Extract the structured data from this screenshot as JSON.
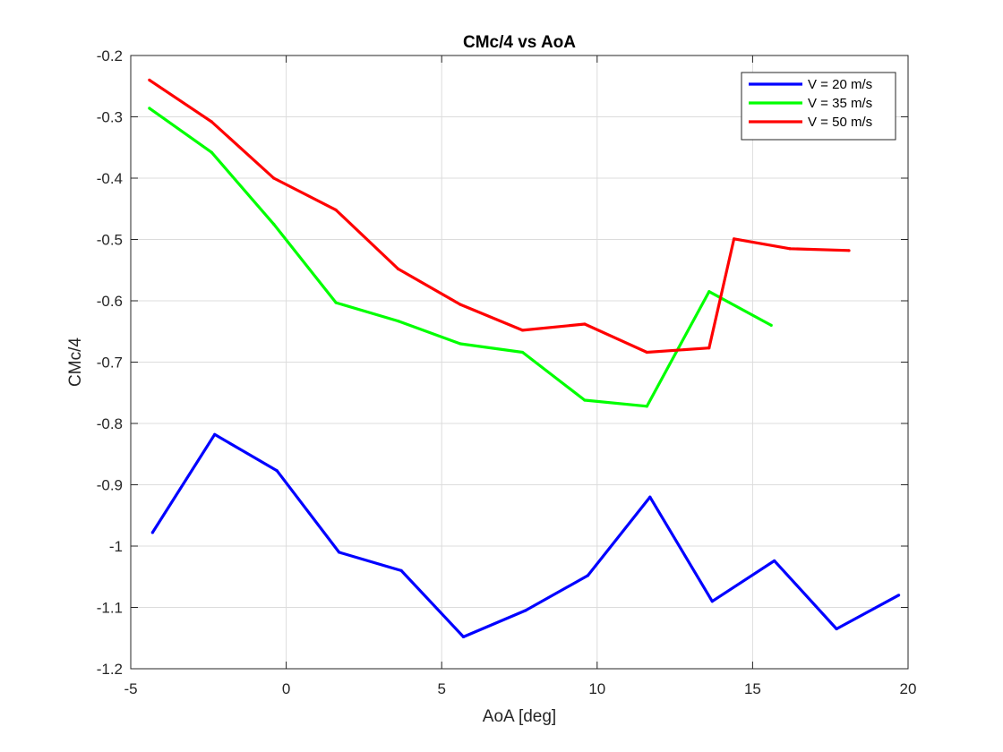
{
  "chart_data": {
    "type": "line",
    "title": "CMc/4 vs AoA",
    "xlabel": "AoA [deg]",
    "ylabel": "CMc/4",
    "xlim": [
      -5,
      20
    ],
    "ylim": [
      -1.2,
      -0.2
    ],
    "xticks": [
      "-5",
      "0",
      "5",
      "10",
      "15",
      "20"
    ],
    "yticks": [
      "-1.2",
      "-1.1",
      "-1",
      "-0.9",
      "-0.8",
      "-0.7",
      "-0.6",
      "-0.5",
      "-0.4",
      "-0.3",
      "-0.2"
    ],
    "grid": true,
    "legend_position": "top-right",
    "series": [
      {
        "name": "V = 20 m/s",
        "color": "#0000ff",
        "x": [
          -4.3,
          -2.3,
          -0.3,
          1.7,
          3.7,
          5.7,
          7.7,
          9.7,
          11.7,
          13.7,
          15.7,
          17.7,
          19.7
        ],
        "y": [
          -0.978,
          -0.818,
          -0.877,
          -1.01,
          -1.04,
          -1.148,
          -1.105,
          -1.048,
          -0.92,
          -1.09,
          -1.024,
          -1.135,
          -1.08
        ]
      },
      {
        "name": "V = 35 m/s",
        "color": "#00ff00",
        "x": [
          -4.4,
          -2.4,
          -0.4,
          1.6,
          3.6,
          5.6,
          7.6,
          9.6,
          11.6,
          13.6,
          15.6
        ],
        "y": [
          -0.286,
          -0.358,
          -0.475,
          -0.603,
          -0.633,
          -0.67,
          -0.684,
          -0.762,
          -0.772,
          -0.585,
          -0.64
        ]
      },
      {
        "name": "V = 50 m/s",
        "color": "#ff0000",
        "x": [
          -4.4,
          -2.4,
          -0.4,
          1.6,
          3.6,
          5.6,
          7.6,
          9.6,
          11.6,
          13.6,
          14.4,
          16.2,
          18.1
        ],
        "y": [
          -0.24,
          -0.308,
          -0.4,
          -0.452,
          -0.548,
          -0.606,
          -0.648,
          -0.638,
          -0.684,
          -0.677,
          -0.499,
          -0.515,
          -0.518
        ]
      }
    ]
  }
}
